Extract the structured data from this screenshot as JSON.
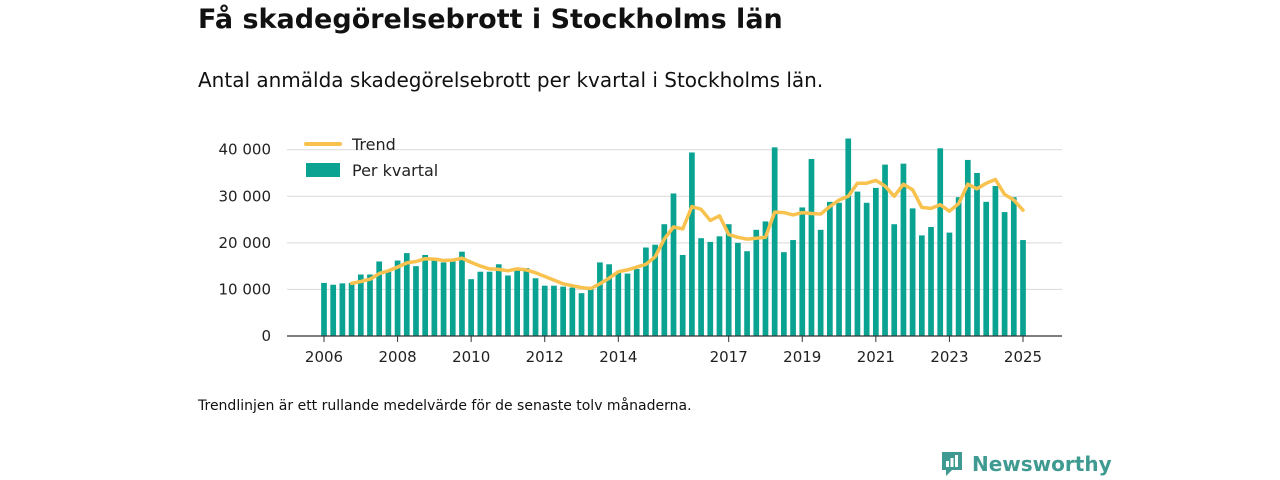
{
  "header": {
    "title": "Få skadegörelsebrott i Stockholms län",
    "subtitle": "Antal anmälda skadegörelsebrott per kvartal i Stockholms län."
  },
  "footnote": "Trendlinjen är ett rullande medelvärde för de senaste tolv månaderna.",
  "brand": {
    "name": "Newsworthy",
    "icon": "newsworthy-logo-icon",
    "color": "#3f9b92"
  },
  "colors": {
    "bar": "#0aa392",
    "trend": "#f9c24f",
    "grid": "#d9d9d9",
    "axis": "#333333"
  },
  "chart_data": {
    "type": "bar",
    "title": "",
    "xlabel": "",
    "ylabel": "",
    "ylim": [
      0,
      45000
    ],
    "grid": true,
    "legend_position": "top-left",
    "y_ticks": [
      {
        "value": 0,
        "label": "0"
      },
      {
        "value": 10000,
        "label": "10 000"
      },
      {
        "value": 20000,
        "label": "20 000"
      },
      {
        "value": 30000,
        "label": "30 000"
      },
      {
        "value": 40000,
        "label": "40 000"
      }
    ],
    "x_ticks": [
      {
        "value": 2006.0,
        "label": "2006"
      },
      {
        "value": 2008.0,
        "label": "2008"
      },
      {
        "value": 2010.0,
        "label": "2010"
      },
      {
        "value": 2012.0,
        "label": "2012"
      },
      {
        "value": 2014.0,
        "label": "2014"
      },
      {
        "value": 2017.0,
        "label": "2017"
      },
      {
        "value": 2019.0,
        "label": "2019"
      },
      {
        "value": 2021.0,
        "label": "2021"
      },
      {
        "value": 2023.0,
        "label": "2023"
      },
      {
        "value": 2025.0,
        "label": "2025"
      }
    ],
    "x": [
      "2006 Q1",
      "2006 Q2",
      "2006 Q3",
      "2006 Q4",
      "2007 Q1",
      "2007 Q2",
      "2007 Q3",
      "2007 Q4",
      "2008 Q1",
      "2008 Q2",
      "2008 Q3",
      "2008 Q4",
      "2009 Q1",
      "2009 Q2",
      "2009 Q3",
      "2009 Q4",
      "2010 Q1",
      "2010 Q2",
      "2010 Q3",
      "2010 Q4",
      "2011 Q1",
      "2011 Q2",
      "2011 Q3",
      "2011 Q4",
      "2012 Q1",
      "2012 Q2",
      "2012 Q3",
      "2012 Q4",
      "2013 Q1",
      "2013 Q2",
      "2013 Q3",
      "2013 Q4",
      "2014 Q1",
      "2014 Q2",
      "2014 Q3",
      "2014 Q4",
      "2015 Q1",
      "2015 Q2",
      "2015 Q3",
      "2015 Q4",
      "2016 Q1",
      "2016 Q2",
      "2016 Q3",
      "2016 Q4",
      "2017 Q1",
      "2017 Q2",
      "2017 Q3",
      "2017 Q4",
      "2018 Q1",
      "2018 Q2",
      "2018 Q3",
      "2018 Q4",
      "2019 Q1",
      "2019 Q2",
      "2019 Q3",
      "2019 Q4",
      "2020 Q1",
      "2020 Q2",
      "2020 Q3",
      "2020 Q4",
      "2021 Q1",
      "2021 Q2",
      "2021 Q3",
      "2021 Q4",
      "2022 Q1",
      "2022 Q2",
      "2022 Q3",
      "2022 Q4",
      "2023 Q1",
      "2023 Q2",
      "2023 Q3",
      "2023 Q4",
      "2024 Q1",
      "2024 Q2",
      "2024 Q3",
      "2024 Q4",
      "2025 Q1"
    ],
    "series": [
      {
        "name": "Per kvartal",
        "type": "bar",
        "values": [
          11400,
          11000,
          11300,
          11400,
          13200,
          13200,
          16000,
          13800,
          16200,
          17800,
          15000,
          17400,
          16800,
          15800,
          16000,
          18100,
          12200,
          13800,
          13800,
          15400,
          13000,
          14400,
          14600,
          12400,
          10800,
          10800,
          10600,
          10400,
          9200,
          10000,
          15800,
          15400,
          13800,
          13400,
          14400,
          19000,
          19600,
          24000,
          30600,
          17400,
          39400,
          21000,
          20200,
          21400,
          24000,
          20000,
          18200,
          22800,
          24600,
          40500,
          18000,
          20600,
          27600,
          38000,
          22800,
          28800,
          28600,
          42400,
          31000,
          28600,
          31800,
          36800,
          24000,
          37000,
          27400,
          21600,
          23400,
          40300,
          22200,
          29800,
          37800,
          35000,
          28800,
          32200,
          26600,
          29800,
          20600
        ]
      },
      {
        "name": "Trend",
        "type": "line",
        "values": [
          null,
          null,
          null,
          11300,
          11700,
          12200,
          13400,
          14000,
          14800,
          15700,
          16000,
          16600,
          16500,
          16200,
          16300,
          16700,
          15800,
          15000,
          14400,
          14300,
          14000,
          14400,
          14200,
          13600,
          12800,
          12000,
          11200,
          10800,
          10400,
          10200,
          11200,
          12400,
          13800,
          14200,
          14800,
          15400,
          17000,
          20800,
          23400,
          23000,
          27800,
          27200,
          24800,
          25800,
          21800,
          21200,
          20800,
          21000,
          21200,
          26600,
          26500,
          26000,
          26500,
          26300,
          26200,
          27800,
          29200,
          30000,
          32800,
          32800,
          33400,
          32200,
          30000,
          32600,
          31400,
          27600,
          27400,
          28200,
          26800,
          28400,
          32600,
          31600,
          32800,
          33600,
          30400,
          29200,
          27000
        ]
      }
    ]
  }
}
